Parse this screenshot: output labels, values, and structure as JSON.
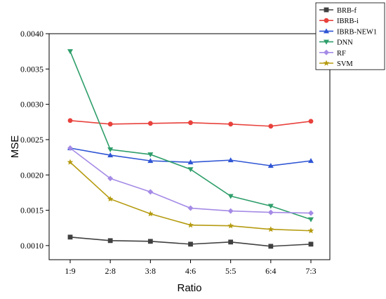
{
  "chart_data": {
    "type": "line",
    "xlabel": "Ratio",
    "ylabel": "MSE",
    "categories": [
      "1:9",
      "2:8",
      "3:8",
      "4:6",
      "5:5",
      "6:4",
      "7:3"
    ],
    "ylim": [
      0.0008,
      0.004
    ],
    "yticks": [
      "0.0010",
      "0.0015",
      "0.0020",
      "0.0025",
      "0.0030",
      "0.0035",
      "0.0040"
    ],
    "grid": false,
    "legend_position": "top-right",
    "series": [
      {
        "name": "BRB-f",
        "color": "#404040",
        "marker": "square",
        "values": [
          0.00112,
          0.00107,
          0.00106,
          0.00102,
          0.00105,
          0.00099,
          0.00102
        ]
      },
      {
        "name": "IBRB-i",
        "color": "#e8413c",
        "marker": "circle",
        "values": [
          0.00277,
          0.00272,
          0.00273,
          0.00274,
          0.00272,
          0.00269,
          0.00276
        ]
      },
      {
        "name": "IBRB-NEW1",
        "color": "#2f55d4",
        "marker": "triangle-up",
        "values": [
          0.00238,
          0.00228,
          0.0022,
          0.00218,
          0.00221,
          0.00213,
          0.0022
        ]
      },
      {
        "name": "DNN",
        "color": "#2e9e6a",
        "marker": "triangle-down",
        "values": [
          0.00375,
          0.00236,
          0.00229,
          0.00208,
          0.0017,
          0.00156,
          0.00137
        ]
      },
      {
        "name": "RF",
        "color": "#a58be6",
        "marker": "diamond",
        "values": [
          0.00238,
          0.00195,
          0.00176,
          0.00153,
          0.00149,
          0.00147,
          0.00146
        ]
      },
      {
        "name": "SVM",
        "color": "#b59b10",
        "marker": "star",
        "values": [
          0.00218,
          0.00166,
          0.00145,
          0.00129,
          0.00128,
          0.00123,
          0.00121
        ]
      }
    ]
  }
}
